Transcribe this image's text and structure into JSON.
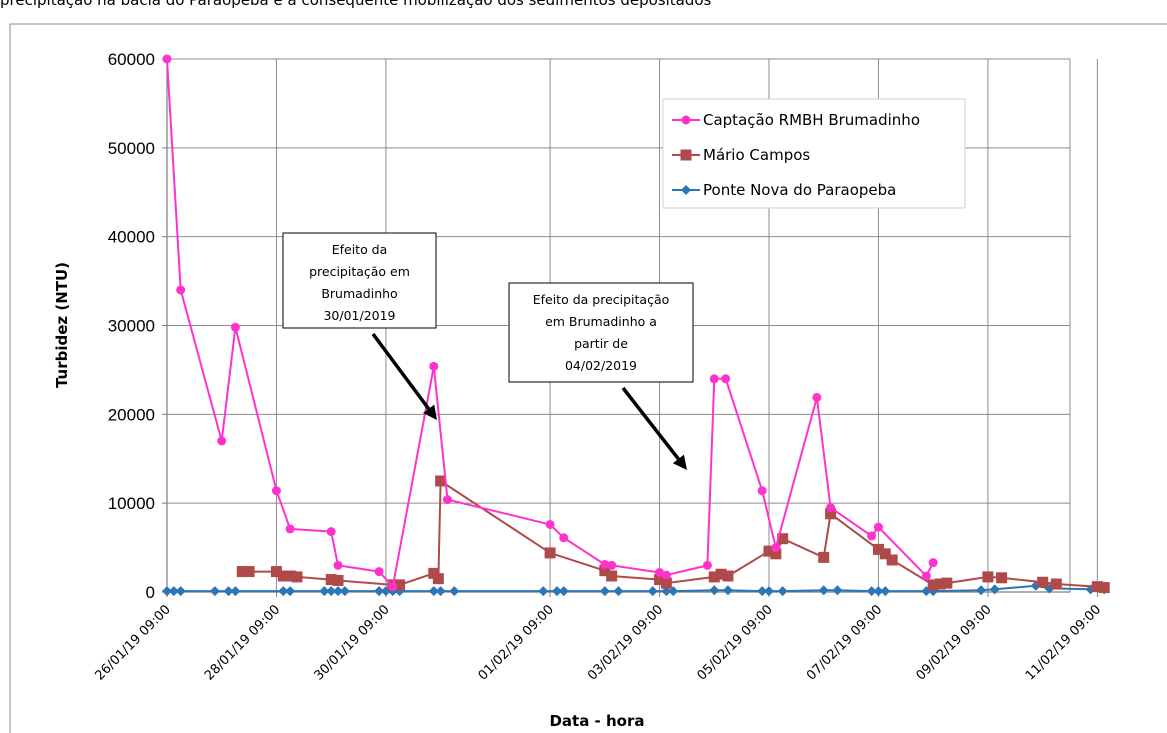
{
  "header_text": "precipitação na bacia do Paraopeba e a consequente mobilização dos sedimentos depositados",
  "chart_data": {
    "type": "line",
    "title": "",
    "xlabel": "Data - hora",
    "ylabel": "Turbidez (NTU)",
    "ylim": [
      0,
      60000
    ],
    "yticks": [
      0,
      10000,
      20000,
      30000,
      40000,
      50000,
      60000
    ],
    "xlim_days": [
      0,
      16.5
    ],
    "xticks": [
      "26/01/19 09:00",
      "28/01/19 09:00",
      "30/01/19 09:00",
      "01/02/19 09:00",
      "03/02/19 09:00",
      "05/02/19 09:00",
      "07/02/19 09:00",
      "09/02/19 09:00",
      "11/02/19 09:00"
    ],
    "grid": true,
    "legend_position": "top-right",
    "series": [
      {
        "name": "Captação RMBH Brumadinho",
        "color": "#ff33cc",
        "marker": "circle",
        "x": [
          "26/01/19 09:00",
          "26/01/19 15:00",
          "27/01/19 09:00",
          "27/01/19 15:00",
          "28/01/19 09:00",
          "28/01/19 15:00",
          "29/01/19 09:00",
          "29/01/19 12:00",
          "30/01/19 06:00",
          "30/01/19 12:00",
          "31/01/19 06:00",
          "31/01/19 12:00",
          "01/02/19 09:00",
          "01/02/19 15:00",
          "02/02/19 09:00",
          "02/02/19 12:00",
          "03/02/19 09:00",
          "03/02/19 12:00",
          "04/02/19 06:00",
          "04/02/19 09:00",
          "04/02/19 14:00",
          "05/02/19 06:00",
          "05/02/19 12:00",
          "06/02/19 06:00",
          "06/02/19 12:00",
          "07/02/19 06:00",
          "07/02/19 09:00",
          "08/02/19 06:00",
          "08/02/19 09:00"
        ],
        "values": [
          60000,
          34000,
          17000,
          29800,
          11400,
          7100,
          6800,
          3000,
          2300,
          600,
          25400,
          10400,
          7600,
          6100,
          3100,
          3000,
          2200,
          1900,
          3000,
          24000,
          24000,
          11400,
          5000,
          21900,
          9500,
          6300,
          7300,
          1800,
          3300
        ]
      },
      {
        "name": "Mário Campos",
        "color": "#b04a4a",
        "marker": "square",
        "x": [
          "27/01/19 18:00",
          "27/01/19 21:00",
          "28/01/19 09:00",
          "28/01/19 12:00",
          "28/01/19 15:00",
          "28/01/19 18:00",
          "29/01/19 09:00",
          "29/01/19 12:00",
          "30/01/19 12:00",
          "30/01/19 15:00",
          "31/01/19 06:00",
          "31/01/19 08:00",
          "31/01/19 09:00",
          "01/02/19 09:00",
          "02/02/19 09:00",
          "02/02/19 12:00",
          "03/02/19 09:00",
          "03/02/19 12:00",
          "04/02/19 09:00",
          "04/02/19 12:00",
          "04/02/19 15:00",
          "05/02/19 09:00",
          "05/02/19 12:00",
          "05/02/19 15:00",
          "06/02/19 09:00",
          "06/02/19 12:00",
          "07/02/19 09:00",
          "07/02/19 12:00",
          "07/02/19 15:00",
          "08/02/19 09:00",
          "08/02/19 12:00",
          "08/02/19 15:00",
          "09/02/19 09:00",
          "09/02/19 15:00",
          "10/02/19 09:00",
          "10/02/19 15:00",
          "11/02/19 09:00",
          "11/02/19 12:00"
        ],
        "values": [
          2300,
          2300,
          2300,
          1800,
          1800,
          1700,
          1400,
          1300,
          800,
          800,
          2100,
          1500,
          12500,
          4400,
          2400,
          1800,
          1400,
          1000,
          1700,
          2000,
          1800,
          4600,
          4300,
          6000,
          3900,
          8800,
          4800,
          4300,
          3600,
          800,
          900,
          1000,
          1700,
          1600,
          1100,
          900,
          600,
          500
        ]
      },
      {
        "name": "Ponte Nova do Paraopeba",
        "color": "#2e75b6",
        "marker": "diamond",
        "x": [
          "26/01/19 09:00",
          "26/01/19 12:00",
          "26/01/19 15:00",
          "27/01/19 06:00",
          "27/01/19 12:00",
          "27/01/19 15:00",
          "28/01/19 12:00",
          "28/01/19 15:00",
          "29/01/19 06:00",
          "29/01/19 09:00",
          "29/01/19 12:00",
          "29/01/19 15:00",
          "30/01/19 06:00",
          "30/01/19 09:00",
          "30/01/19 12:00",
          "30/01/19 15:00",
          "31/01/19 06:00",
          "31/01/19 09:00",
          "31/01/19 15:00",
          "01/02/19 06:00",
          "01/02/19 12:00",
          "01/02/19 15:00",
          "02/02/19 09:00",
          "02/02/19 15:00",
          "03/02/19 06:00",
          "03/02/19 12:00",
          "03/02/19 15:00",
          "04/02/19 09:00",
          "04/02/19 15:00",
          "05/02/19 06:00",
          "05/02/19 09:00",
          "05/02/19 15:00",
          "06/02/19 09:00",
          "06/02/19 15:00",
          "07/02/19 06:00",
          "07/02/19 09:00",
          "07/02/19 12:00",
          "08/02/19 06:00",
          "08/02/19 09:00",
          "09/02/19 06:00",
          "09/02/19 12:00",
          "10/02/19 06:00",
          "10/02/19 12:00",
          "11/02/19 06:00",
          "11/02/19 12:00"
        ],
        "values": [
          100,
          100,
          100,
          100,
          100,
          100,
          100,
          100,
          100,
          100,
          100,
          100,
          100,
          100,
          100,
          100,
          100,
          100,
          100,
          100,
          100,
          100,
          100,
          100,
          100,
          100,
          100,
          200,
          200,
          100,
          100,
          100,
          200,
          200,
          100,
          100,
          100,
          100,
          100,
          200,
          300,
          700,
          400,
          300,
          300
        ]
      }
    ],
    "annotations": [
      {
        "lines": [
          "Efeito da",
          "precipitação em",
          "Brumadinho",
          "30/01/2019"
        ]
      },
      {
        "lines": [
          "Efeito da precipitação",
          "em Brumadinho a",
          "partir de",
          "04/02/2019"
        ]
      }
    ]
  }
}
